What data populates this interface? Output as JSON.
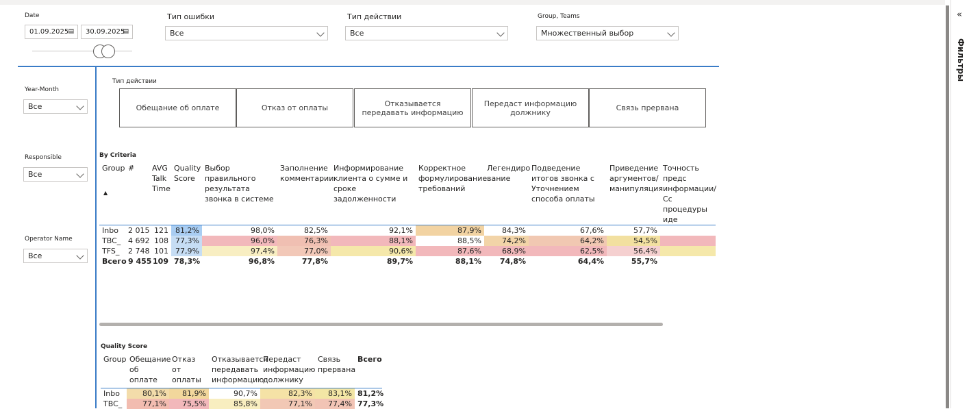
{
  "filters": {
    "date": {
      "label": "Date",
      "start": "01.09.2025",
      "end": "30.09.2025"
    },
    "error_type": {
      "label": "Тип ошибки",
      "value": "Все"
    },
    "action_type": {
      "label": "Тип действии",
      "value": "Все"
    },
    "group_teams": {
      "label": "Group, Teams",
      "value": "Множественный выбор"
    }
  },
  "side_slicers": [
    {
      "label": "Year-Month",
      "value": "Все"
    },
    {
      "label": "Responsible",
      "value": "Все"
    },
    {
      "label": "Operator Name",
      "value": "Все"
    }
  ],
  "action_buttons": {
    "title": "Тип действии",
    "buttons": [
      "Обещание об оплате",
      "Отказ от оплаты",
      "Отказывается передавать информацию",
      "Передаст информацию должнику",
      "Связь прервана"
    ]
  },
  "criteria_table": {
    "title": "By Criteria",
    "headers": [
      "Group",
      "#",
      "AVG Talk Time",
      "Quality Score",
      "Выбор правильного результата звонка в системе",
      "Заполнение комментарии",
      "Информирование клиента о сумме и сроке задолженности",
      "Корректное формулирование требований",
      "Легендиро вание",
      "Подведение итогов звонка с Уточнением способа оплаты",
      "Приведение аргументов/ манипуляция",
      "Точность предс информации/Сс процедуры иде"
    ],
    "rows": [
      {
        "cells": [
          "Inbo",
          "2 015",
          "121",
          "81,2%",
          "98,0%",
          "82,5%",
          "92,1%",
          "87,9%",
          "84,3%",
          "67,6%",
          "57,7%",
          null
        ],
        "colors": [
          "#fff",
          "#fff",
          "#fff",
          "#a9cdf2",
          "#fff",
          "#fff",
          "#fff",
          "#f2d3a2",
          "#fff",
          "#fff",
          "#fff",
          "#fff"
        ]
      },
      {
        "cells": [
          "TBC_",
          "4 692",
          "108",
          "77,3%",
          "96,0%",
          "76,3%",
          "88,1%",
          "88,5%",
          "74,2%",
          "64,2%",
          "54,5%",
          null
        ],
        "colors": [
          "#fff",
          "#fff",
          "#fff",
          "#c6ddf4",
          "#f2b8bb",
          "#f0bfb2",
          "#f2b8bb",
          "#fff",
          "#f2d4a8",
          "#f1c8b2",
          "#f2e0a0",
          "#f2b8bb"
        ]
      },
      {
        "cells": [
          "TFS_",
          "2 748",
          "101",
          "77,9%",
          "97,4%",
          "77,0%",
          "90,6%",
          "87,6%",
          "68,9%",
          "62,5%",
          "56,4%",
          null
        ],
        "colors": [
          "#fff",
          "#fff",
          "#fff",
          "#c6ddf4",
          "#f8eec2",
          "#f2c8b8",
          "#f5e8aa",
          "#f2b8bb",
          "#f2b8bb",
          "#f2b8bb",
          "#f5d0d0",
          "#f5e8aa"
        ]
      }
    ],
    "total": [
      "Всего",
      "9 455",
      "109",
      "78,3%",
      "96,8%",
      "77,8%",
      "89,7%",
      "88,1%",
      "74,8%",
      "64,4%",
      "55,7%",
      null
    ]
  },
  "score_table": {
    "title": "Quality Score",
    "headers": [
      "Group",
      "Обещание об оплате",
      "Отказ от оплаты",
      "Отказывается передавать информацию",
      "Передаст информацию должнику",
      "Связь прервана",
      "Всего"
    ],
    "rows": [
      {
        "cells": [
          "Inbo",
          "80,1%",
          "81,9%",
          "90,7%",
          "82,3%",
          "83,1%",
          "81,2%"
        ],
        "colors": [
          "#fff",
          "#f3dcaa",
          "#f2d79c",
          "#fff",
          "#f5e2a6",
          "#f3e6a5",
          "#fff"
        ]
      },
      {
        "cells": [
          "TBC_",
          "77,1%",
          "75,5%",
          "85,8%",
          "77,1%",
          "77,4%",
          "77,3%"
        ],
        "colors": [
          "#fff",
          "#f2bcb0",
          "#f2b8bb",
          "#f8eec0",
          "#f2c8b5",
          "#f2c4b5",
          "#fff"
        ]
      }
    ]
  },
  "filters_pane": {
    "title": "Фильтры"
  }
}
